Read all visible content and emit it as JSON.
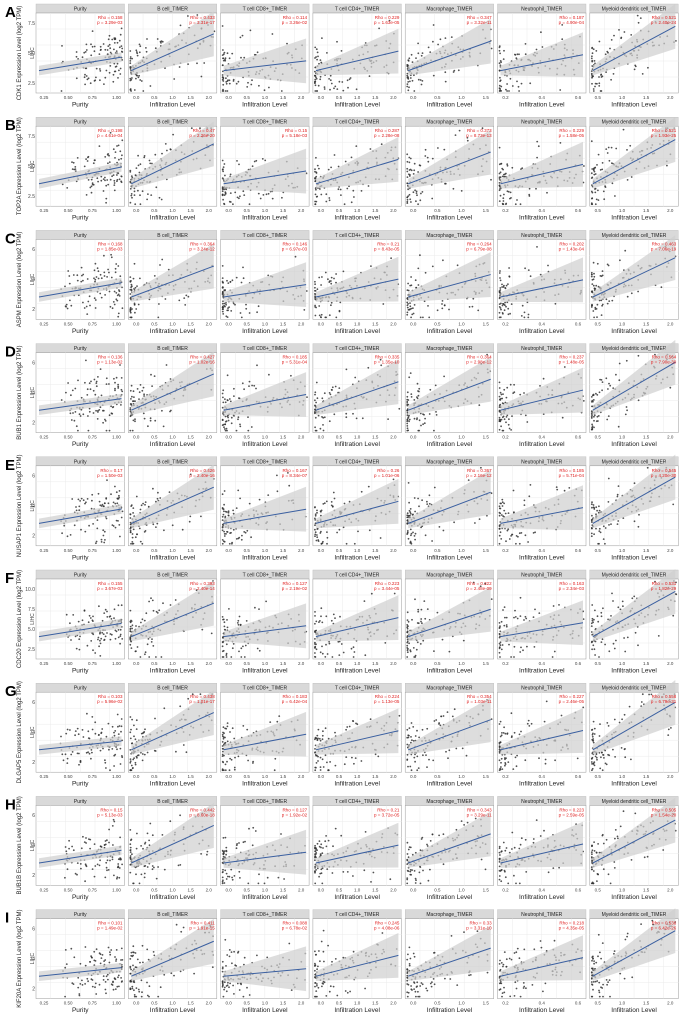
{
  "figure": {
    "panels": [
      "Purity",
      "B cell_TIMER",
      "T cell CD8+_TIMER",
      "T cell CD4+_TIMER",
      "Macrophage_TIMER",
      "Neutrophil_TIMER",
      "Myeloid dendritic cell_TIMER"
    ],
    "cancer_label": "LIHC",
    "x_label_purity": "Purity",
    "x_label_infiltration": "Infiltration Level",
    "colors": {
      "point": "#333333",
      "line": "#3a5fa0",
      "band": "#cfcfcf",
      "strip": "#d9d9d9",
      "stats": "#e02020",
      "grid": "#ebebeb"
    }
  },
  "chart_data": [
    {
      "type": "scatter",
      "letter": "A",
      "ylabel": "CDK1 Expression Level (log2 TPM)",
      "yticks": [
        "2.5",
        "5.0",
        "7.5"
      ],
      "stats": [
        [
          "Rho = 0.158",
          "p = 3.29e-03"
        ],
        [
          "Rho = 0.433",
          "p = 3.31e-17"
        ],
        [
          "Rho = 0.114",
          "p = 3.26e-02"
        ],
        [
          "Rho = 0.229",
          "p = 1.63e-05"
        ],
        [
          "Rho = 0.347",
          "p = 3.32e-11"
        ],
        [
          "Rho = 0.187",
          "p = 4.90e-04"
        ],
        [
          "Rho = 0.521",
          "p = 2.40e-24"
        ]
      ]
    },
    {
      "type": "scatter",
      "letter": "B",
      "ylabel": "TOP2A Expression Level (log2 TPM)",
      "yticks": [
        "2.5",
        "5.0",
        "7.5"
      ],
      "stats": [
        [
          "Rho = 0.198",
          "p = 4.61e-04"
        ],
        [
          "Rho = 0.47",
          "p = 2.26e-20"
        ],
        [
          "Rho = 0.15",
          "p = 5.18e-03"
        ],
        [
          "Rho = 0.287",
          "p = 2.28e-08"
        ],
        [
          "Rho = 0.373",
          "p = 8.73e-13"
        ],
        [
          "Rho = 0.229",
          "p = 1.58e-05"
        ],
        [
          "Rho = 0.521",
          "p = 1.93e-25"
        ]
      ]
    },
    {
      "type": "scatter",
      "letter": "C",
      "ylabel": "ASPM Expression Level (log2 TPM)",
      "yticks": [
        "2",
        "4",
        "6"
      ],
      "stats": [
        [
          "Rho = 0.168",
          "p = 1.85e-03"
        ],
        [
          "Rho = 0.364",
          "p = 3.24e-12"
        ],
        [
          "Rho = 0.146",
          "p = 6.97e-03"
        ],
        [
          "Rho = 0.21",
          "p = 8.43e-05"
        ],
        [
          "Rho = 0.264",
          "p = 6.79e-08"
        ],
        [
          "Rho = 0.202",
          "p = 1.43e-04"
        ],
        [
          "Rho = 0.463",
          "p = 7.06e-19"
        ]
      ]
    },
    {
      "type": "scatter",
      "letter": "D",
      "ylabel": "BUB1 Expression Level (log2 TPM)",
      "yticks": [
        "2",
        "4",
        "6"
      ],
      "stats": [
        [
          "Rho = 0.136",
          "p = 1.13e-02"
        ],
        [
          "Rho = 0.427",
          "p = 1.02e-16"
        ],
        [
          "Rho = 0.185",
          "p = 5.31e-04"
        ],
        [
          "Rho = 0.335",
          "p = 1.35e-10"
        ],
        [
          "Rho = 0.364",
          "p = 2.98e-12"
        ],
        [
          "Rho = 0.237",
          "p = 1.48e-05"
        ],
        [
          "Rho = 0.564",
          "p = 7.90e-30"
        ]
      ]
    },
    {
      "type": "scatter",
      "letter": "E",
      "ylabel": "NUSAP1 Expression Level (log2 TPM)",
      "yticks": [
        "2",
        "4",
        "6"
      ],
      "stats": [
        [
          "Rho = 0.17",
          "p = 1.50e-03"
        ],
        [
          "Rho = 0.426",
          "p = 2.40e-16"
        ],
        [
          "Rho = 0.167",
          "p = 8.34e-07"
        ],
        [
          "Rho = 0.26",
          "p = 1.01e-06"
        ],
        [
          "Rho = 0.367",
          "p = 2.16e-12"
        ],
        [
          "Rho = 0.185",
          "p = 5.71e-04"
        ],
        [
          "Rho = 0.545",
          "p = 4.20e-30"
        ]
      ]
    },
    {
      "type": "scatter",
      "letter": "F",
      "ylabel": "CDC20 Expression Level (log2 TPM)",
      "yticks": [
        "2.5",
        "5.0",
        "7.5",
        "10.0"
      ],
      "stats": [
        [
          "Rho = 0.155",
          "p = 3.67e-03"
        ],
        [
          "Rho = 0.393",
          "p = 2.40e-14"
        ],
        [
          "Rho = 0.127",
          "p = 2.19e-02"
        ],
        [
          "Rho = 0.223",
          "p = 3.44e-05"
        ],
        [
          "Rho = 0.322",
          "p = 2.48e-09"
        ],
        [
          "Rho = 0.163",
          "p = 2.34e-03"
        ],
        [
          "Rho = 0.531",
          "p = 1.82e-29"
        ]
      ]
    },
    {
      "type": "scatter",
      "letter": "G",
      "ylabel": "DLGAP5 Expression Level (log2 TPM)",
      "yticks": [
        "2",
        "4",
        "6"
      ],
      "stats": [
        [
          "Rho = 0.103",
          "p = 5.96e-02"
        ],
        [
          "Rho = 0.438",
          "p = 1.01e-17"
        ],
        [
          "Rho = 0.183",
          "p = 6.42e-04"
        ],
        [
          "Rho = 0.224",
          "p = 1.13e-05"
        ],
        [
          "Rho = 0.354",
          "p = 1.03e-11"
        ],
        [
          "Rho = 0.227",
          "p = 2.46e-05"
        ],
        [
          "Rho = 0.558",
          "p = 6.79e-31"
        ]
      ]
    },
    {
      "type": "scatter",
      "letter": "H",
      "ylabel": "BUB1B Expression Level (log2 TPM)",
      "yticks": [
        "2",
        "4",
        "6"
      ],
      "stats": [
        [
          "Rho = 0.15",
          "p = 5.13e-03"
        ],
        [
          "Rho = 0.442",
          "p = 8.60e-18"
        ],
        [
          "Rho = 0.127",
          "p = 1.92e-02"
        ],
        [
          "Rho = 0.21",
          "p = 3.72e-05"
        ],
        [
          "Rho = 0.343",
          "p = 3.29e-11"
        ],
        [
          "Rho = 0.223",
          "p = 2.59e-05"
        ],
        [
          "Rho = 0.505",
          "p = 1.54e-20"
        ]
      ]
    },
    {
      "type": "scatter",
      "letter": "I",
      "ylabel": "KIF20A Expression Level (log2 TPM)",
      "yticks": [
        "2",
        "4",
        "6"
      ],
      "stats": [
        [
          "Rho = 0.101",
          "p = 1.49e-02"
        ],
        [
          "Rho = 0.411",
          "p = 1.91e-15"
        ],
        [
          "Rho = 0.088",
          "p = 6.78e-02"
        ],
        [
          "Rho = 0.245",
          "p = 4.08e-06"
        ],
        [
          "Rho = 0.33",
          "p = 3.31e-10"
        ],
        [
          "Rho = 0.218",
          "p = 4.35e-05"
        ],
        [
          "Rho = 0.536",
          "p = 6.42e-26"
        ]
      ]
    }
  ]
}
